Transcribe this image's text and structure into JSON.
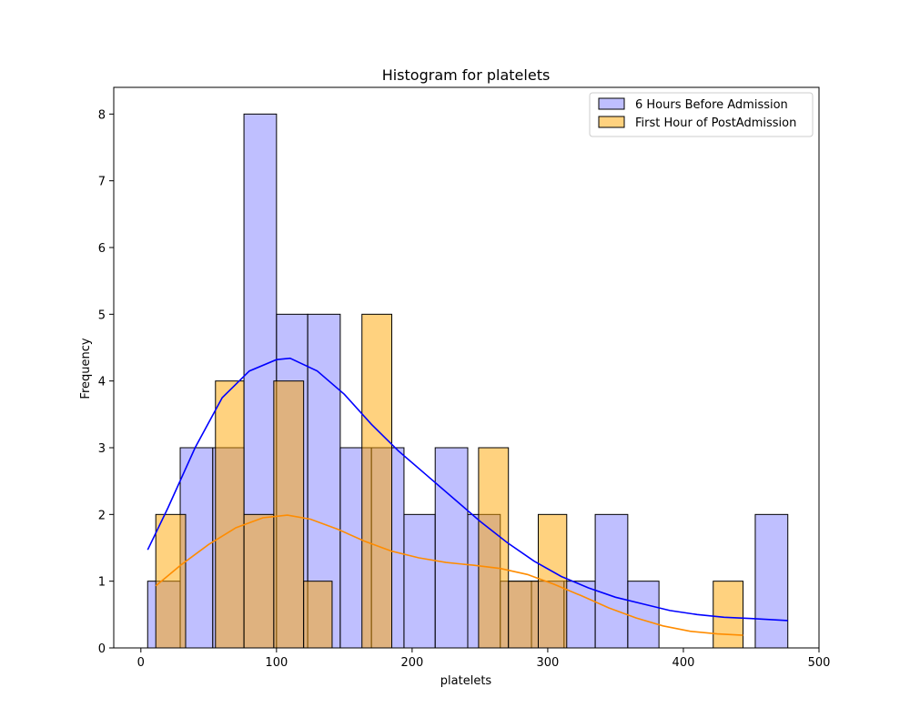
{
  "chart_data": {
    "type": "bar",
    "title": "Histogram for platelets",
    "xlabel": "platelets",
    "ylabel": "Frequency",
    "xlim": [
      -20,
      500
    ],
    "ylim": [
      0,
      8.4
    ],
    "xticks": [
      0,
      100,
      200,
      300,
      400,
      500
    ],
    "yticks": [
      0,
      1,
      2,
      3,
      4,
      5,
      6,
      7,
      8
    ],
    "legend_position": "top-right",
    "series": [
      {
        "name": "6 Hours Before Admission",
        "fill": "#8080ff",
        "kde_color": "#0000ff",
        "bins": [
          {
            "x0": 5,
            "x1": 29,
            "count": 1
          },
          {
            "x0": 29,
            "x1": 53,
            "count": 3
          },
          {
            "x0": 53,
            "x1": 76,
            "count": 3
          },
          {
            "x0": 76,
            "x1": 100,
            "count": 8
          },
          {
            "x0": 100,
            "x1": 123,
            "count": 5
          },
          {
            "x0": 123,
            "x1": 147,
            "count": 5
          },
          {
            "x0": 147,
            "x1": 170,
            "count": 3
          },
          {
            "x0": 170,
            "x1": 194,
            "count": 3
          },
          {
            "x0": 194,
            "x1": 217,
            "count": 2
          },
          {
            "x0": 217,
            "x1": 241,
            "count": 3
          },
          {
            "x0": 241,
            "x1": 265,
            "count": 2
          },
          {
            "x0": 265,
            "x1": 288,
            "count": 1
          },
          {
            "x0": 288,
            "x1": 312,
            "count": 1
          },
          {
            "x0": 312,
            "x1": 335,
            "count": 1
          },
          {
            "x0": 335,
            "x1": 359,
            "count": 2
          },
          {
            "x0": 359,
            "x1": 382,
            "count": 1
          },
          {
            "x0": 382,
            "x1": 406,
            "count": 0
          },
          {
            "x0": 406,
            "x1": 429,
            "count": 0
          },
          {
            "x0": 429,
            "x1": 453,
            "count": 0
          },
          {
            "x0": 453,
            "x1": 477,
            "count": 2
          }
        ],
        "kde": [
          [
            5,
            1.47
          ],
          [
            20,
            2.1
          ],
          [
            40,
            3.0
          ],
          [
            60,
            3.75
          ],
          [
            80,
            4.15
          ],
          [
            100,
            4.32
          ],
          [
            110,
            4.34
          ],
          [
            130,
            4.15
          ],
          [
            150,
            3.8
          ],
          [
            170,
            3.35
          ],
          [
            190,
            2.95
          ],
          [
            210,
            2.6
          ],
          [
            230,
            2.25
          ],
          [
            250,
            1.9
          ],
          [
            270,
            1.58
          ],
          [
            290,
            1.3
          ],
          [
            310,
            1.07
          ],
          [
            330,
            0.9
          ],
          [
            350,
            0.76
          ],
          [
            370,
            0.66
          ],
          [
            390,
            0.56
          ],
          [
            410,
            0.5
          ],
          [
            430,
            0.46
          ],
          [
            450,
            0.44
          ],
          [
            477,
            0.41
          ]
        ]
      },
      {
        "name": "First Hour of PostAdmission",
        "fill": "#ffa500",
        "kde_color": "#ff8c00",
        "bins": [
          {
            "x0": 11,
            "x1": 33,
            "count": 2
          },
          {
            "x0": 33,
            "x1": 55,
            "count": 0
          },
          {
            "x0": 55,
            "x1": 76,
            "count": 4
          },
          {
            "x0": 76,
            "x1": 98,
            "count": 2
          },
          {
            "x0": 98,
            "x1": 120,
            "count": 4
          },
          {
            "x0": 120,
            "x1": 141,
            "count": 1
          },
          {
            "x0": 141,
            "x1": 163,
            "count": 0
          },
          {
            "x0": 163,
            "x1": 185,
            "count": 5
          },
          {
            "x0": 185,
            "x1": 206,
            "count": 0
          },
          {
            "x0": 206,
            "x1": 228,
            "count": 0
          },
          {
            "x0": 228,
            "x1": 249,
            "count": 0
          },
          {
            "x0": 249,
            "x1": 271,
            "count": 3
          },
          {
            "x0": 271,
            "x1": 293,
            "count": 1
          },
          {
            "x0": 293,
            "x1": 314,
            "count": 2
          },
          {
            "x0": 314,
            "x1": 336,
            "count": 0
          },
          {
            "x0": 336,
            "x1": 358,
            "count": 0
          },
          {
            "x0": 358,
            "x1": 379,
            "count": 0
          },
          {
            "x0": 379,
            "x1": 401,
            "count": 0
          },
          {
            "x0": 401,
            "x1": 422,
            "count": 0
          },
          {
            "x0": 422,
            "x1": 444,
            "count": 1
          }
        ],
        "kde": [
          [
            11,
            0.93
          ],
          [
            30,
            1.25
          ],
          [
            50,
            1.55
          ],
          [
            70,
            1.8
          ],
          [
            90,
            1.95
          ],
          [
            108,
            1.99
          ],
          [
            125,
            1.93
          ],
          [
            145,
            1.78
          ],
          [
            165,
            1.6
          ],
          [
            185,
            1.45
          ],
          [
            205,
            1.35
          ],
          [
            225,
            1.28
          ],
          [
            245,
            1.24
          ],
          [
            265,
            1.19
          ],
          [
            285,
            1.1
          ],
          [
            305,
            0.95
          ],
          [
            325,
            0.78
          ],
          [
            345,
            0.6
          ],
          [
            365,
            0.45
          ],
          [
            385,
            0.33
          ],
          [
            405,
            0.25
          ],
          [
            425,
            0.21
          ],
          [
            444,
            0.19
          ]
        ]
      }
    ]
  }
}
